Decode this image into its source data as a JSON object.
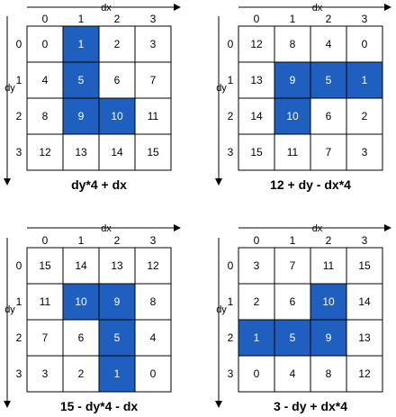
{
  "colors": {
    "highlight": "#1f5fbf",
    "highlight_text": "#ffffff",
    "cell_text": "#000000",
    "grid_line": "#000000",
    "background": "#ffffff"
  },
  "dx_axis_label": "dx",
  "dy_axis_label": "dy",
  "grids": [
    {
      "title": "dy*4 + dx",
      "col_labels": [
        "0",
        "1",
        "2",
        "3"
      ],
      "row_labels": [
        "0",
        "1",
        "2",
        "3"
      ],
      "cells": [
        [
          "0",
          "1",
          "2",
          "3"
        ],
        [
          "4",
          "5",
          "6",
          "7"
        ],
        [
          "8",
          "9",
          "10",
          "11"
        ],
        [
          "12",
          "13",
          "14",
          "15"
        ]
      ],
      "highlighted": [
        [
          0,
          1
        ],
        [
          1,
          1
        ],
        [
          2,
          1
        ],
        [
          2,
          2
        ]
      ]
    },
    {
      "title": "12 + dy - dx*4",
      "col_labels": [
        "0",
        "1",
        "2",
        "3"
      ],
      "row_labels": [
        "0",
        "1",
        "2",
        "3"
      ],
      "cells": [
        [
          "12",
          "8",
          "4",
          "0"
        ],
        [
          "13",
          "9",
          "5",
          "1"
        ],
        [
          "14",
          "10",
          "6",
          "2"
        ],
        [
          "15",
          "11",
          "7",
          "3"
        ]
      ],
      "highlighted": [
        [
          1,
          1
        ],
        [
          1,
          2
        ],
        [
          1,
          3
        ],
        [
          2,
          1
        ]
      ]
    },
    {
      "title": "15 - dy*4 - dx",
      "col_labels": [
        "0",
        "1",
        "2",
        "3"
      ],
      "row_labels": [
        "0",
        "1",
        "2",
        "3"
      ],
      "cells": [
        [
          "15",
          "14",
          "13",
          "12"
        ],
        [
          "11",
          "10",
          "9",
          "8"
        ],
        [
          "7",
          "6",
          "5",
          "4"
        ],
        [
          "3",
          "2",
          "1",
          "0"
        ]
      ],
      "highlighted": [
        [
          1,
          1
        ],
        [
          1,
          2
        ],
        [
          2,
          2
        ],
        [
          3,
          2
        ]
      ]
    },
    {
      "title": "3 - dy + dx*4",
      "col_labels": [
        "0",
        "1",
        "2",
        "3"
      ],
      "row_labels": [
        "0",
        "1",
        "2",
        "3"
      ],
      "cells": [
        [
          "3",
          "7",
          "11",
          "15"
        ],
        [
          "2",
          "6",
          "10",
          "14"
        ],
        [
          "1",
          "5",
          "9",
          "13"
        ],
        [
          "0",
          "4",
          "8",
          "12"
        ]
      ],
      "highlighted": [
        [
          1,
          2
        ],
        [
          2,
          0
        ],
        [
          2,
          1
        ],
        [
          2,
          2
        ]
      ]
    }
  ]
}
